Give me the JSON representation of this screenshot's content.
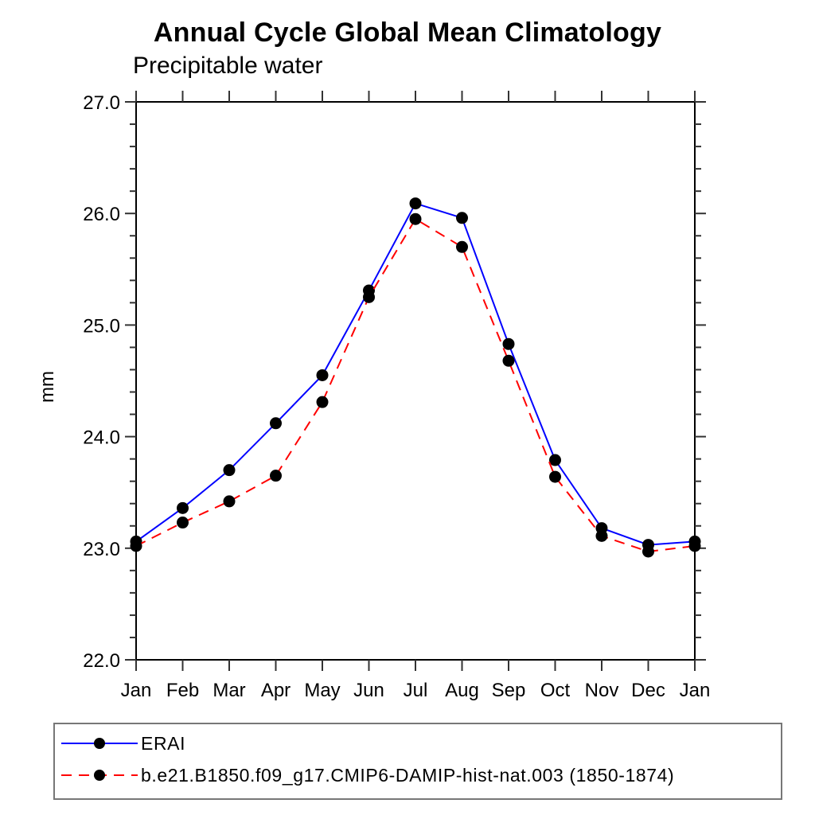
{
  "page": {
    "background_color": "#ffffff",
    "text_color": "#000000"
  },
  "chart_data": {
    "type": "line",
    "title": "Annual Cycle Global Mean Climatology",
    "subtitle": "Precipitable water",
    "xlabel": "",
    "ylabel": "mm",
    "categories": [
      "Jan",
      "Feb",
      "Mar",
      "Apr",
      "May",
      "Jun",
      "Jul",
      "Aug",
      "Sep",
      "Oct",
      "Nov",
      "Dec",
      "Jan"
    ],
    "ylim": [
      22.0,
      27.0
    ],
    "ytick_major": [
      22.0,
      23.0,
      24.0,
      25.0,
      26.0,
      27.0
    ],
    "ytick_labels": [
      "22.0",
      "23.0",
      "24.0",
      "25.0",
      "26.0",
      "27.0"
    ],
    "ytick_minor_step": 0.2,
    "grid": false,
    "axis_color": "#000000",
    "tick_color": "#333333",
    "marker_shape": "circle",
    "legend_position": "bottom-left-box",
    "series": [
      {
        "name": "ERAI",
        "color": "#0000ff",
        "line_style": "solid",
        "marker_color": "#000000",
        "values": [
          23.06,
          23.36,
          23.7,
          24.12,
          24.55,
          25.31,
          26.09,
          25.96,
          24.83,
          23.79,
          23.18,
          23.03,
          23.06
        ]
      },
      {
        "name": "b.e21.B1850.f09_g17.CMIP6-DAMIP-hist-nat.003 (1850-1874)",
        "color": "#ff0000",
        "line_style": "dashed",
        "marker_color": "#000000",
        "values": [
          23.02,
          23.23,
          23.42,
          23.65,
          24.31,
          25.25,
          25.95,
          25.7,
          24.68,
          23.64,
          23.11,
          22.97,
          23.02
        ]
      }
    ]
  }
}
